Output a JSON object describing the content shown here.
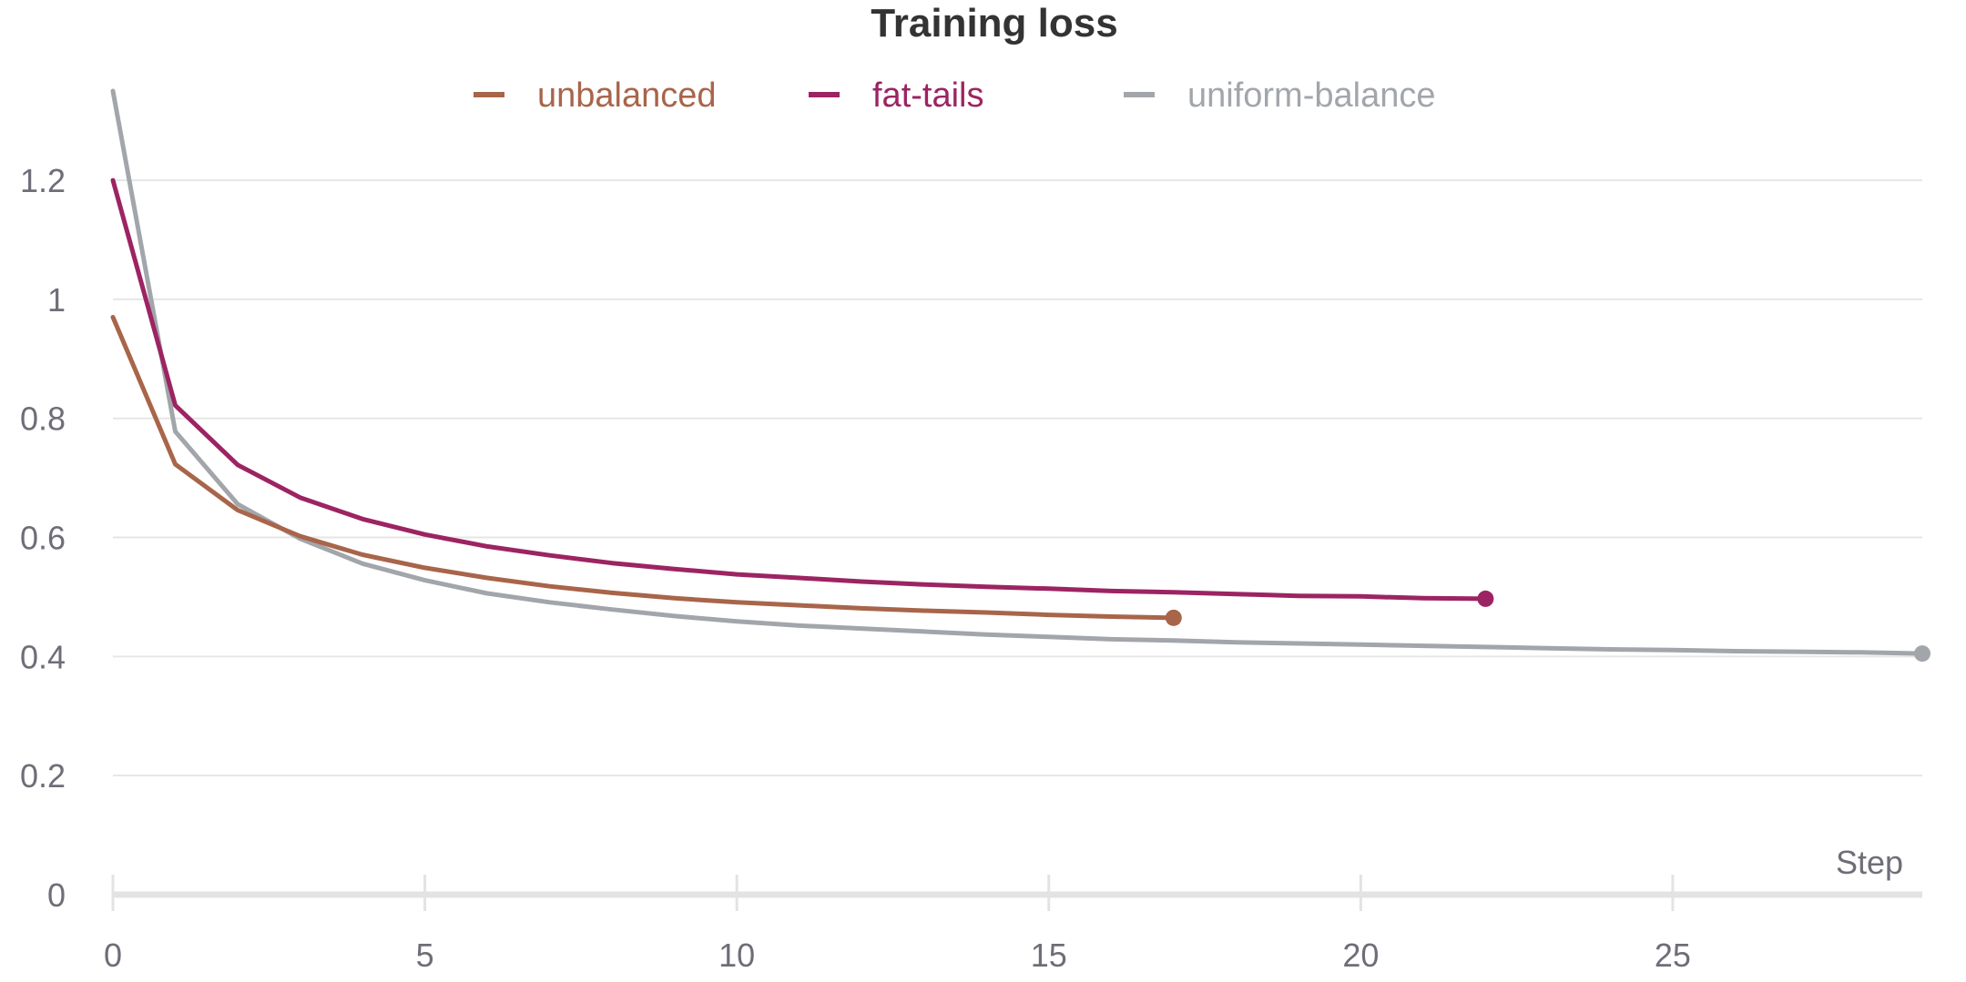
{
  "chart_data": {
    "type": "line",
    "title": "Training loss",
    "xlabel": "Step",
    "ylabel": "",
    "xlim": [
      0,
      29
    ],
    "ylim": [
      0,
      1.35
    ],
    "x_ticks": [
      0,
      5,
      10,
      15,
      20,
      25
    ],
    "y_ticks": [
      0,
      0.2,
      0.4,
      0.6,
      0.8,
      1,
      1.2
    ],
    "x_tick_labels": [
      "0",
      "5",
      "10",
      "15",
      "20",
      "25"
    ],
    "y_tick_labels": [
      "0",
      "0.2",
      "0.4",
      "0.6",
      "0.8",
      "1",
      "1.2"
    ],
    "grid": true,
    "legend_position": "top-center",
    "series": [
      {
        "name": "unbalanced",
        "color": "#a8654a",
        "x": [
          0,
          1,
          2,
          3,
          4,
          5,
          6,
          7,
          8,
          9,
          10,
          11,
          12,
          13,
          14,
          15,
          16,
          17
        ],
        "y": [
          0.97,
          0.723,
          0.646,
          0.602,
          0.571,
          0.549,
          0.532,
          0.518,
          0.507,
          0.498,
          0.491,
          0.486,
          0.481,
          0.477,
          0.474,
          0.47,
          0.467,
          0.465
        ]
      },
      {
        "name": "fat-tails",
        "color": "#9c2462",
        "x": [
          0,
          1,
          2,
          3,
          4,
          5,
          6,
          7,
          8,
          9,
          10,
          11,
          12,
          13,
          14,
          15,
          16,
          17,
          18,
          19,
          20,
          21,
          22
        ],
        "y": [
          1.2,
          0.822,
          0.722,
          0.667,
          0.631,
          0.605,
          0.585,
          0.57,
          0.557,
          0.547,
          0.538,
          0.532,
          0.526,
          0.521,
          0.517,
          0.514,
          0.51,
          0.508,
          0.505,
          0.502,
          0.501,
          0.498,
          0.497
        ]
      },
      {
        "name": "uniform-balance",
        "color": "#a2a6ab",
        "x": [
          0,
          1,
          2,
          3,
          4,
          5,
          6,
          7,
          8,
          9,
          10,
          11,
          12,
          13,
          14,
          15,
          16,
          17,
          18,
          19,
          20,
          21,
          22,
          23,
          24,
          25,
          26,
          27,
          28,
          29
        ],
        "y": [
          1.35,
          0.778,
          0.656,
          0.598,
          0.556,
          0.528,
          0.506,
          0.491,
          0.479,
          0.468,
          0.459,
          0.452,
          0.447,
          0.442,
          0.437,
          0.433,
          0.429,
          0.427,
          0.424,
          0.422,
          0.42,
          0.418,
          0.416,
          0.414,
          0.412,
          0.411,
          0.409,
          0.408,
          0.407,
          0.405
        ]
      }
    ]
  }
}
